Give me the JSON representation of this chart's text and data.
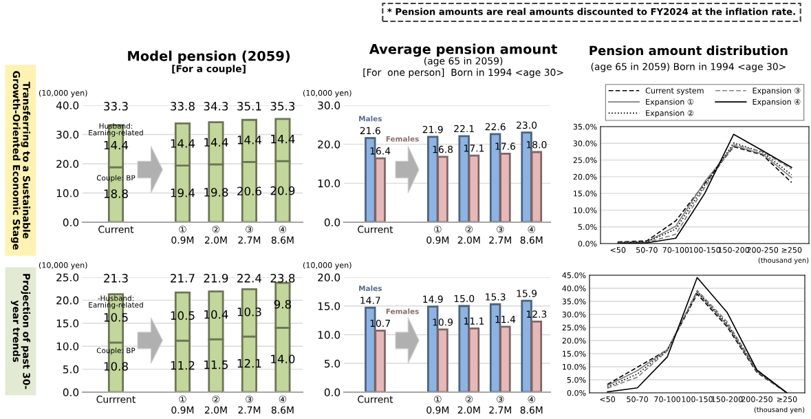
{
  "chart_data": [
    {
      "type": "bar",
      "title": "Model pension (2059)",
      "subtitle": "[For a couple]",
      "ylabel": "(10,000 yen)",
      "categories": [
        "Current",
        null,
        "①\n0.9M",
        "②\n2.0M",
        "③\n2.7M",
        "④\n8.6M"
      ],
      "stacked": true,
      "grid": "y",
      "series": [
        {
          "name": "Couple: BP",
          "color": "#c3d69b",
          "values": [
            18.8,
            null,
            19.4,
            19.8,
            20.6,
            20.9
          ],
          "value_labels": [
            "18.8",
            null,
            "19.4",
            "19.8",
            "20.6",
            "20.9"
          ]
        },
        {
          "name": "Husband:\nEarning-related",
          "color": "#c3d69b",
          "values": [
            14.4,
            null,
            14.4,
            14.4,
            14.4,
            14.4
          ],
          "value_labels": [
            "14.4",
            null,
            "14.4",
            "14.4",
            "14.4",
            "14.4"
          ]
        }
      ],
      "totals": [
        "33.3",
        null,
        "33.8",
        "34.3",
        "35.1",
        "35.3"
      ],
      "ylim": [
        0,
        40
      ],
      "yticks": [
        {
          "value": 0,
          "label": "0.0"
        },
        {
          "value": 10,
          "label": "10.0"
        },
        {
          "value": 20,
          "label": "20.0"
        },
        {
          "value": 30,
          "label": "30.0"
        },
        {
          "value": 40,
          "label": "40.0"
        }
      ],
      "annotations": [
        "Transferring to a Sustainable\nGrowth-Oriented Economic Stage"
      ]
    },
    {
      "type": "bar",
      "title": "Average pension amount",
      "subtitle": "(age 65 in 2059)\n[For  one person]  Born in 1994 <age 30>",
      "ylabel": "(10,000 yen)",
      "categories": [
        "Current",
        null,
        "①\n0.9M",
        "②\n2.0M",
        "③\n2.7M",
        "④\n8.6M"
      ],
      "grid": "y",
      "series": [
        {
          "name": "Males",
          "color": "#8db3e2",
          "values": [
            21.6,
            null,
            21.9,
            22.1,
            22.6,
            23.0
          ],
          "value_labels": [
            "21.6",
            null,
            "21.9",
            "22.1",
            "22.6",
            "23.0"
          ]
        },
        {
          "name": "Females",
          "color": "#e6b9b8",
          "values": [
            16.4,
            null,
            16.8,
            17.1,
            17.6,
            18.0
          ],
          "value_labels": [
            "16.4",
            null,
            "16.8",
            "17.1",
            "17.6",
            "18.0"
          ]
        }
      ],
      "ylim": [
        0,
        30
      ],
      "yticks": [
        {
          "value": 0,
          "label": "0.0"
        },
        {
          "value": 10,
          "label": "10.0"
        },
        {
          "value": 20,
          "label": "20.0"
        },
        {
          "value": 30,
          "label": "30.0"
        }
      ]
    },
    {
      "type": "line",
      "title": "Pension amount distribution",
      "subtitle": "(age 65 in 2059) Born in 1994 <age 30>",
      "xlabel": "(thousand yen)",
      "categories": [
        "<50",
        "50-70",
        "70-100",
        "100-150",
        "150-200",
        "200-250",
        "≥250"
      ],
      "grid": "y",
      "legend": "top",
      "series": [
        {
          "name": "Current system",
          "color": "#000000",
          "line_style": "dashed",
          "values": [
            0.5,
            0.8,
            6.8,
            18.0,
            29.0,
            26.5,
            18.3
          ]
        },
        {
          "name": "Expansion ①",
          "color": "#808080",
          "line_style": "solid",
          "values": [
            0.3,
            0.5,
            5.2,
            18.5,
            29.3,
            26.8,
            19.7
          ]
        },
        {
          "name": "Expansion ②",
          "color": "#000000",
          "line_style": "dotted",
          "values": [
            0.3,
            0.5,
            4.3,
            17.5,
            30.1,
            27.3,
            20.6
          ]
        },
        {
          "name": "Expansion ③",
          "color": "#808080",
          "line_style": "dashed",
          "values": [
            0.2,
            0.3,
            2.8,
            16.8,
            29.6,
            27.5,
            22.3
          ]
        },
        {
          "name": "Expansion ④",
          "color": "#000000",
          "line_style": "solid",
          "values": [
            0.1,
            0.2,
            1.6,
            15.0,
            32.7,
            27.8,
            22.8
          ]
        }
      ],
      "ylim": [
        0,
        35
      ],
      "yticks": [
        {
          "value": 0,
          "label": "0.0%"
        },
        {
          "value": 5,
          "label": "5.0%"
        },
        {
          "value": 10,
          "label": "10.0%"
        },
        {
          "value": 15,
          "label": "15.0%"
        },
        {
          "value": 20,
          "label": "20.0%"
        },
        {
          "value": 25,
          "label": "25.0%"
        },
        {
          "value": 30,
          "label": "30.0%"
        },
        {
          "value": 35,
          "label": "35.0%"
        }
      ],
      "annotations": [
        "* Pension amounts are real amounts discounted to FY2024 at the inflation rate."
      ]
    },
    {
      "type": "bar",
      "ylabel": "(10,000 yen)",
      "categories": [
        "Currrent",
        null,
        "①\n0.9M",
        "②\n2.0M",
        "③\n2.7M",
        "④\n8.6M"
      ],
      "stacked": true,
      "grid": "y",
      "series": [
        {
          "name": "Couple: BP",
          "color": "#c3d69b",
          "values": [
            10.8,
            null,
            11.2,
            11.5,
            12.1,
            14.0
          ],
          "value_labels": [
            "10.8",
            null,
            "11.2",
            "11.5",
            "12.1",
            "14.0"
          ]
        },
        {
          "name": "-Husband:\nEarning-related",
          "color": "#c3d69b",
          "values": [
            10.5,
            null,
            10.5,
            10.4,
            10.3,
            9.8
          ],
          "value_labels": [
            "10.5",
            null,
            "10.5",
            "10.4",
            "10.3",
            "9.8"
          ]
        }
      ],
      "totals": [
        "21.3",
        null,
        "21.7",
        "21.9",
        "22.4",
        "23.8"
      ],
      "ylim": [
        0,
        25
      ],
      "yticks": [
        {
          "value": 0,
          "label": "0.0"
        },
        {
          "value": 5,
          "label": "5.0"
        },
        {
          "value": 10,
          "label": "10.0"
        },
        {
          "value": 15,
          "label": "15.0"
        },
        {
          "value": 20,
          "label": "20.0"
        },
        {
          "value": 25,
          "label": "25.0"
        }
      ],
      "annotations": [
        "Projection of past 30-\nyear trends"
      ]
    },
    {
      "type": "bar",
      "ylabel": "(10,000 yen)",
      "categories": [
        "Current",
        null,
        "①\n0.9M",
        "②\n2.0M",
        "③\n2.7M",
        "④\n8.6M"
      ],
      "grid": "y",
      "series": [
        {
          "name": "Males",
          "color": "#8db3e2",
          "values": [
            14.7,
            null,
            14.9,
            15.0,
            15.3,
            15.9
          ],
          "value_labels": [
            "14.7",
            null,
            "14.9",
            "15.0",
            "15.3",
            "15.9"
          ]
        },
        {
          "name": "Females",
          "color": "#e6b9b8",
          "values": [
            10.7,
            null,
            10.9,
            11.1,
            11.4,
            12.3
          ],
          "value_labels": [
            "10.7",
            null,
            "10.9",
            "11.1",
            "11.4",
            "12.3"
          ]
        }
      ],
      "ylim": [
        0,
        20
      ],
      "yticks": [
        {
          "value": 0,
          "label": "0.0"
        },
        {
          "value": 5,
          "label": "5.0"
        },
        {
          "value": 10,
          "label": "10.0"
        },
        {
          "value": 15,
          "label": "15.0"
        },
        {
          "value": 20,
          "label": "20.0"
        }
      ]
    },
    {
      "type": "line",
      "xlabel": "(thousand yen)",
      "categories": [
        "<50",
        "50-70",
        "70-100",
        "100-150",
        "150-200",
        "200-250",
        "≥250"
      ],
      "grid": "y",
      "series": [
        {
          "color": "#000000",
          "line_style": "dashed",
          "values": [
            3.2,
            9.8,
            16.4,
            37.8,
            25.3,
            7.8,
            0.0
          ]
        },
        {
          "color": "#808080",
          "line_style": "solid",
          "values": [
            2.8,
            8.5,
            16.5,
            38.5,
            26.0,
            8.2,
            0.0
          ]
        },
        {
          "color": "#000000",
          "line_style": "dotted",
          "values": [
            2.2,
            7.2,
            16.3,
            38.8,
            26.5,
            8.5,
            0.0
          ]
        },
        {
          "color": "#808080",
          "line_style": "dashed",
          "values": [
            1.8,
            6.0,
            16.0,
            39.2,
            27.2,
            8.8,
            0.0
          ]
        },
        {
          "color": "#000000",
          "line_style": "solid",
          "values": [
            0.4,
            1.9,
            13.7,
            44.1,
            30.8,
            8.7,
            0.0
          ]
        }
      ],
      "ylim": [
        0,
        45
      ],
      "yticks": [
        {
          "value": 0,
          "label": "0.0%"
        },
        {
          "value": 5,
          "label": "5.0%"
        },
        {
          "value": 10,
          "label": "10.0%"
        },
        {
          "value": 15,
          "label": "15.0%"
        },
        {
          "value": 20,
          "label": "20.0%"
        },
        {
          "value": 25,
          "label": "25.0%"
        },
        {
          "value": 30,
          "label": "30.0%"
        },
        {
          "value": 35,
          "label": "35.0%"
        },
        {
          "value": 40,
          "label": "40.0%"
        },
        {
          "value": 45,
          "label": "45.0%"
        }
      ]
    }
  ]
}
